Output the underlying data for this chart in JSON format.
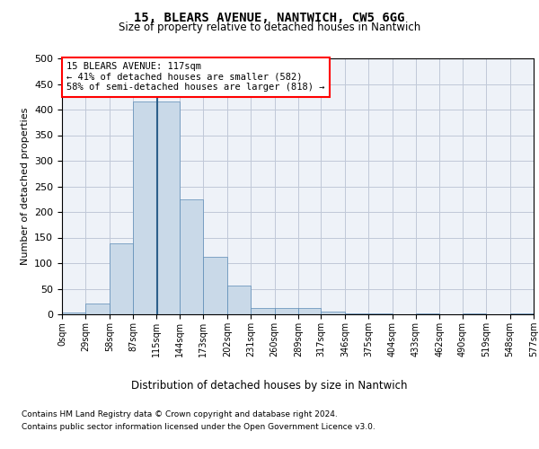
{
  "title1": "15, BLEARS AVENUE, NANTWICH, CW5 6GG",
  "title2": "Size of property relative to detached houses in Nantwich",
  "xlabel": "Distribution of detached houses by size in Nantwich",
  "ylabel": "Number of detached properties",
  "property_size": 117,
  "bin_edges": [
    0,
    29,
    58,
    87,
    115,
    144,
    173,
    202,
    231,
    260,
    289,
    317,
    346,
    375,
    404,
    433,
    462,
    490,
    519,
    548,
    577
  ],
  "bar_heights": [
    3,
    21,
    139,
    415,
    415,
    224,
    113,
    56,
    12,
    13,
    13,
    6,
    2,
    1,
    0,
    2,
    0,
    1,
    0,
    2
  ],
  "bar_color": "#c9d9e8",
  "bar_edge_color": "#5a8ab5",
  "highlight_line_color": "#2c5f8a",
  "grid_color": "#c0c8d8",
  "background_color": "#eef2f8",
  "annotation_text": "15 BLEARS AVENUE: 117sqm\n← 41% of detached houses are smaller (582)\n58% of semi-detached houses are larger (818) →",
  "annotation_box_color": "white",
  "annotation_box_edge": "red",
  "tick_labels": [
    "0sqm",
    "29sqm",
    "58sqm",
    "87sqm",
    "115sqm",
    "144sqm",
    "173sqm",
    "202sqm",
    "231sqm",
    "260sqm",
    "289sqm",
    "317sqm",
    "346sqm",
    "375sqm",
    "404sqm",
    "433sqm",
    "462sqm",
    "490sqm",
    "519sqm",
    "548sqm",
    "577sqm"
  ],
  "footer1": "Contains HM Land Registry data © Crown copyright and database right 2024.",
  "footer2": "Contains public sector information licensed under the Open Government Licence v3.0.",
  "ylim": [
    0,
    500
  ],
  "yticks": [
    0,
    50,
    100,
    150,
    200,
    250,
    300,
    350,
    400,
    450,
    500
  ]
}
